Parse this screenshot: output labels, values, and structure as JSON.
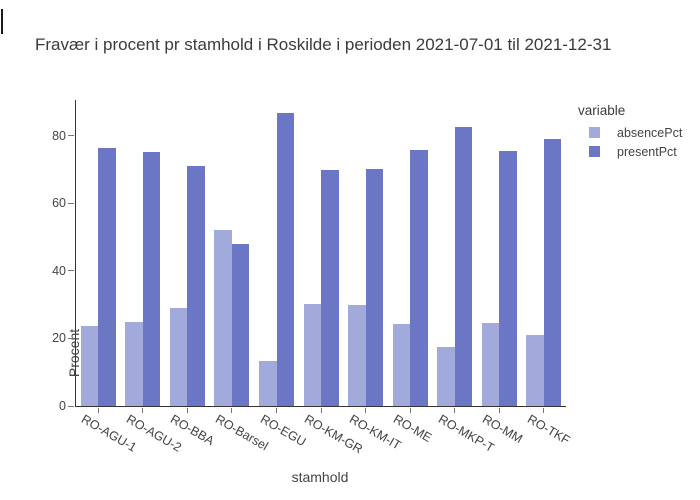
{
  "title": "Fravær i procent pr stamhold i Roskilde i perioden 2021-07-01 til 2021-12-31",
  "chart_data": {
    "type": "bar",
    "title": "Fravær i procent pr stamhold i Roskilde i perioden 2021-07-01 til 2021-12-31",
    "xlabel": "stamhold",
    "ylabel": "Procent",
    "legend_title": "variable",
    "legend_position": "top-right",
    "grid": false,
    "categories": [
      "RO-AGU-1",
      "RO-AGU-2",
      "RO-BBA",
      "RO-Barsel",
      "RO-EGU",
      "RO-KM-GR",
      "RO-KM-IT",
      "RO-ME",
      "RO-MKP-T",
      "RO-MM",
      "RO-TKF"
    ],
    "series": [
      {
        "name": "absencePct",
        "color": "#a2aadb",
        "values": [
          23.8,
          25.0,
          29.1,
          52.0,
          13.2,
          30.2,
          29.9,
          24.2,
          17.6,
          24.6,
          21.0
        ]
      },
      {
        "name": "presentPct",
        "color": "#6b77c4",
        "values": [
          76.2,
          75.0,
          70.9,
          48.0,
          86.8,
          69.8,
          70.1,
          75.8,
          82.4,
          75.4,
          79.0
        ]
      }
    ],
    "ylim": [
      0,
      90.5
    ],
    "yticks": [
      0,
      20,
      40,
      60,
      80
    ]
  }
}
